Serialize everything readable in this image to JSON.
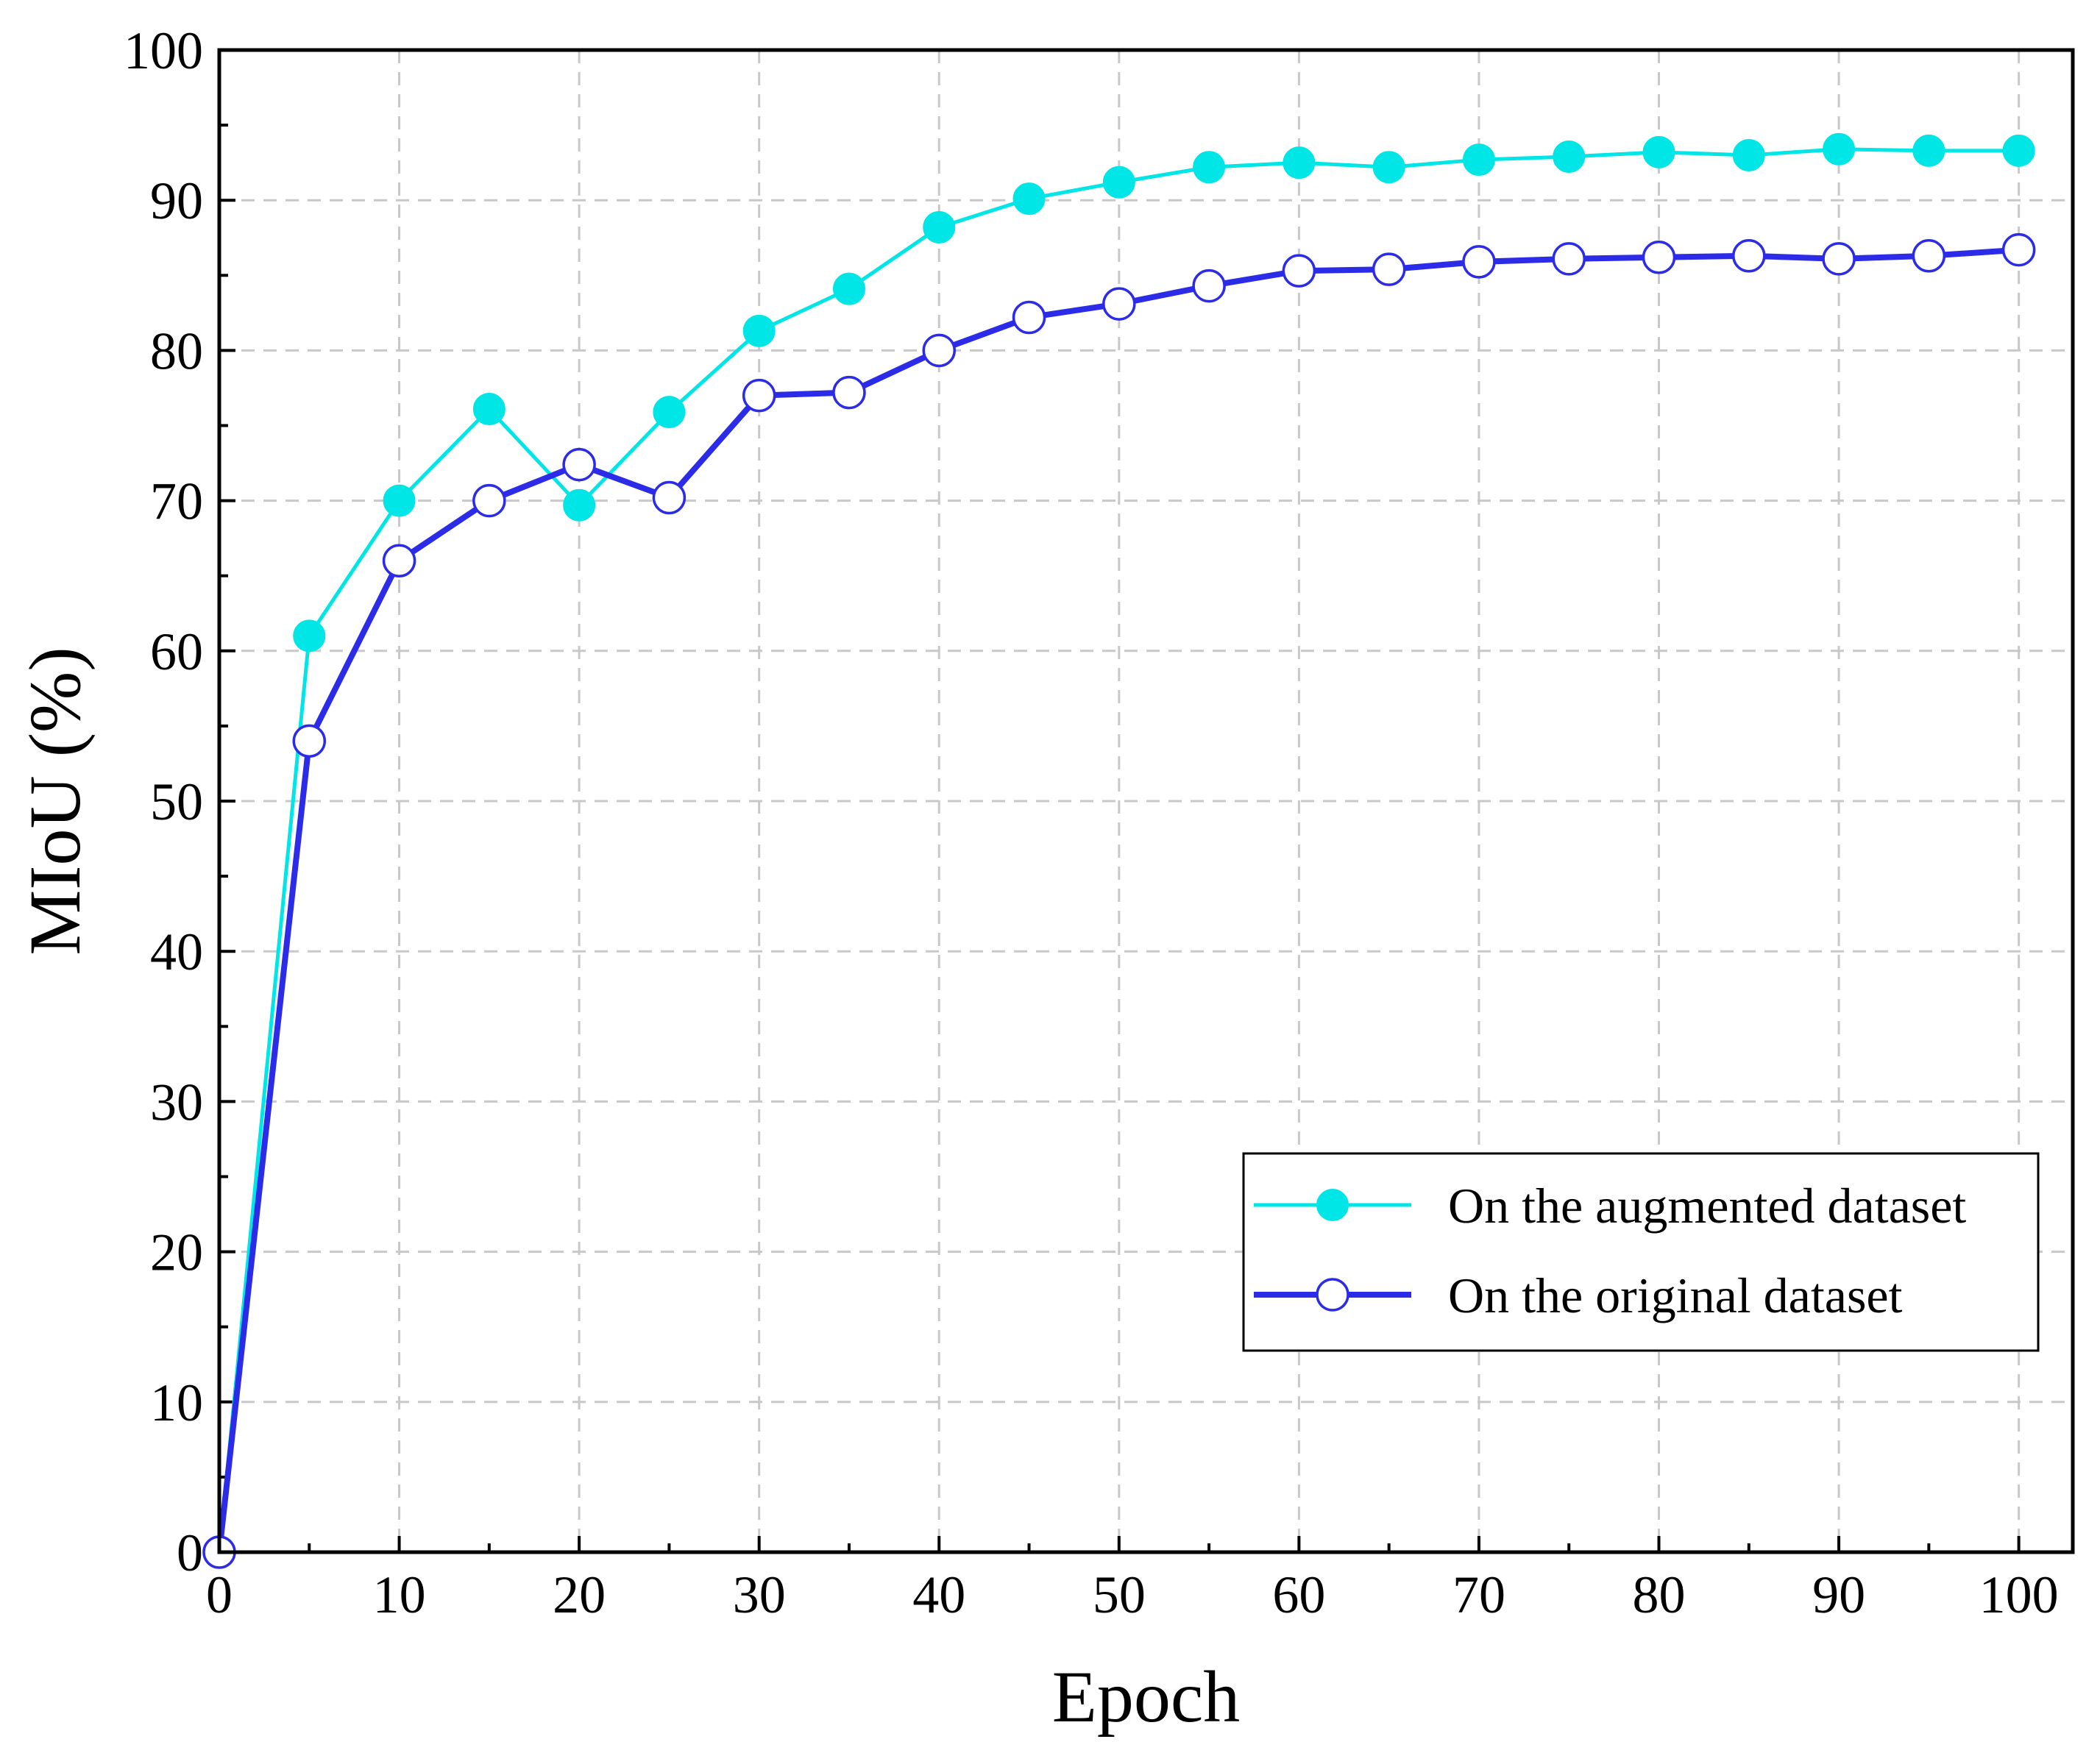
{
  "chart_data": {
    "type": "line",
    "title": "",
    "xlabel": "Epoch",
    "ylabel": "MIoU (%)",
    "xlim": [
      0,
      103
    ],
    "ylim": [
      0,
      100
    ],
    "xticks": [
      0,
      10,
      20,
      30,
      40,
      50,
      60,
      70,
      80,
      90,
      100
    ],
    "yticks": [
      0,
      10,
      20,
      30,
      40,
      50,
      60,
      70,
      80,
      90,
      100
    ],
    "grid": true,
    "legend_position": "bottom-right",
    "x": [
      0,
      5,
      10,
      15,
      20,
      25,
      30,
      35,
      40,
      45,
      50,
      55,
      60,
      65,
      70,
      75,
      80,
      85,
      90,
      95,
      100
    ],
    "series": [
      {
        "name": "On the augmented dataset",
        "color": "#00e5e5",
        "marker": "filled-circle",
        "values": [
          0,
          61.0,
          70.0,
          76.1,
          69.7,
          75.9,
          81.3,
          84.1,
          88.2,
          90.1,
          91.2,
          92.2,
          92.5,
          92.2,
          92.7,
          92.9,
          93.2,
          93.0,
          93.4,
          93.3,
          93.3
        ]
      },
      {
        "name": "On the original dataset",
        "color": "#2b2be8",
        "marker": "open-circle",
        "values": [
          0,
          54.0,
          66.0,
          70.0,
          72.4,
          70.2,
          77.0,
          77.2,
          80.0,
          82.2,
          83.1,
          84.3,
          85.3,
          85.4,
          85.9,
          86.1,
          86.2,
          86.3,
          86.1,
          86.3,
          86.7
        ]
      }
    ]
  }
}
